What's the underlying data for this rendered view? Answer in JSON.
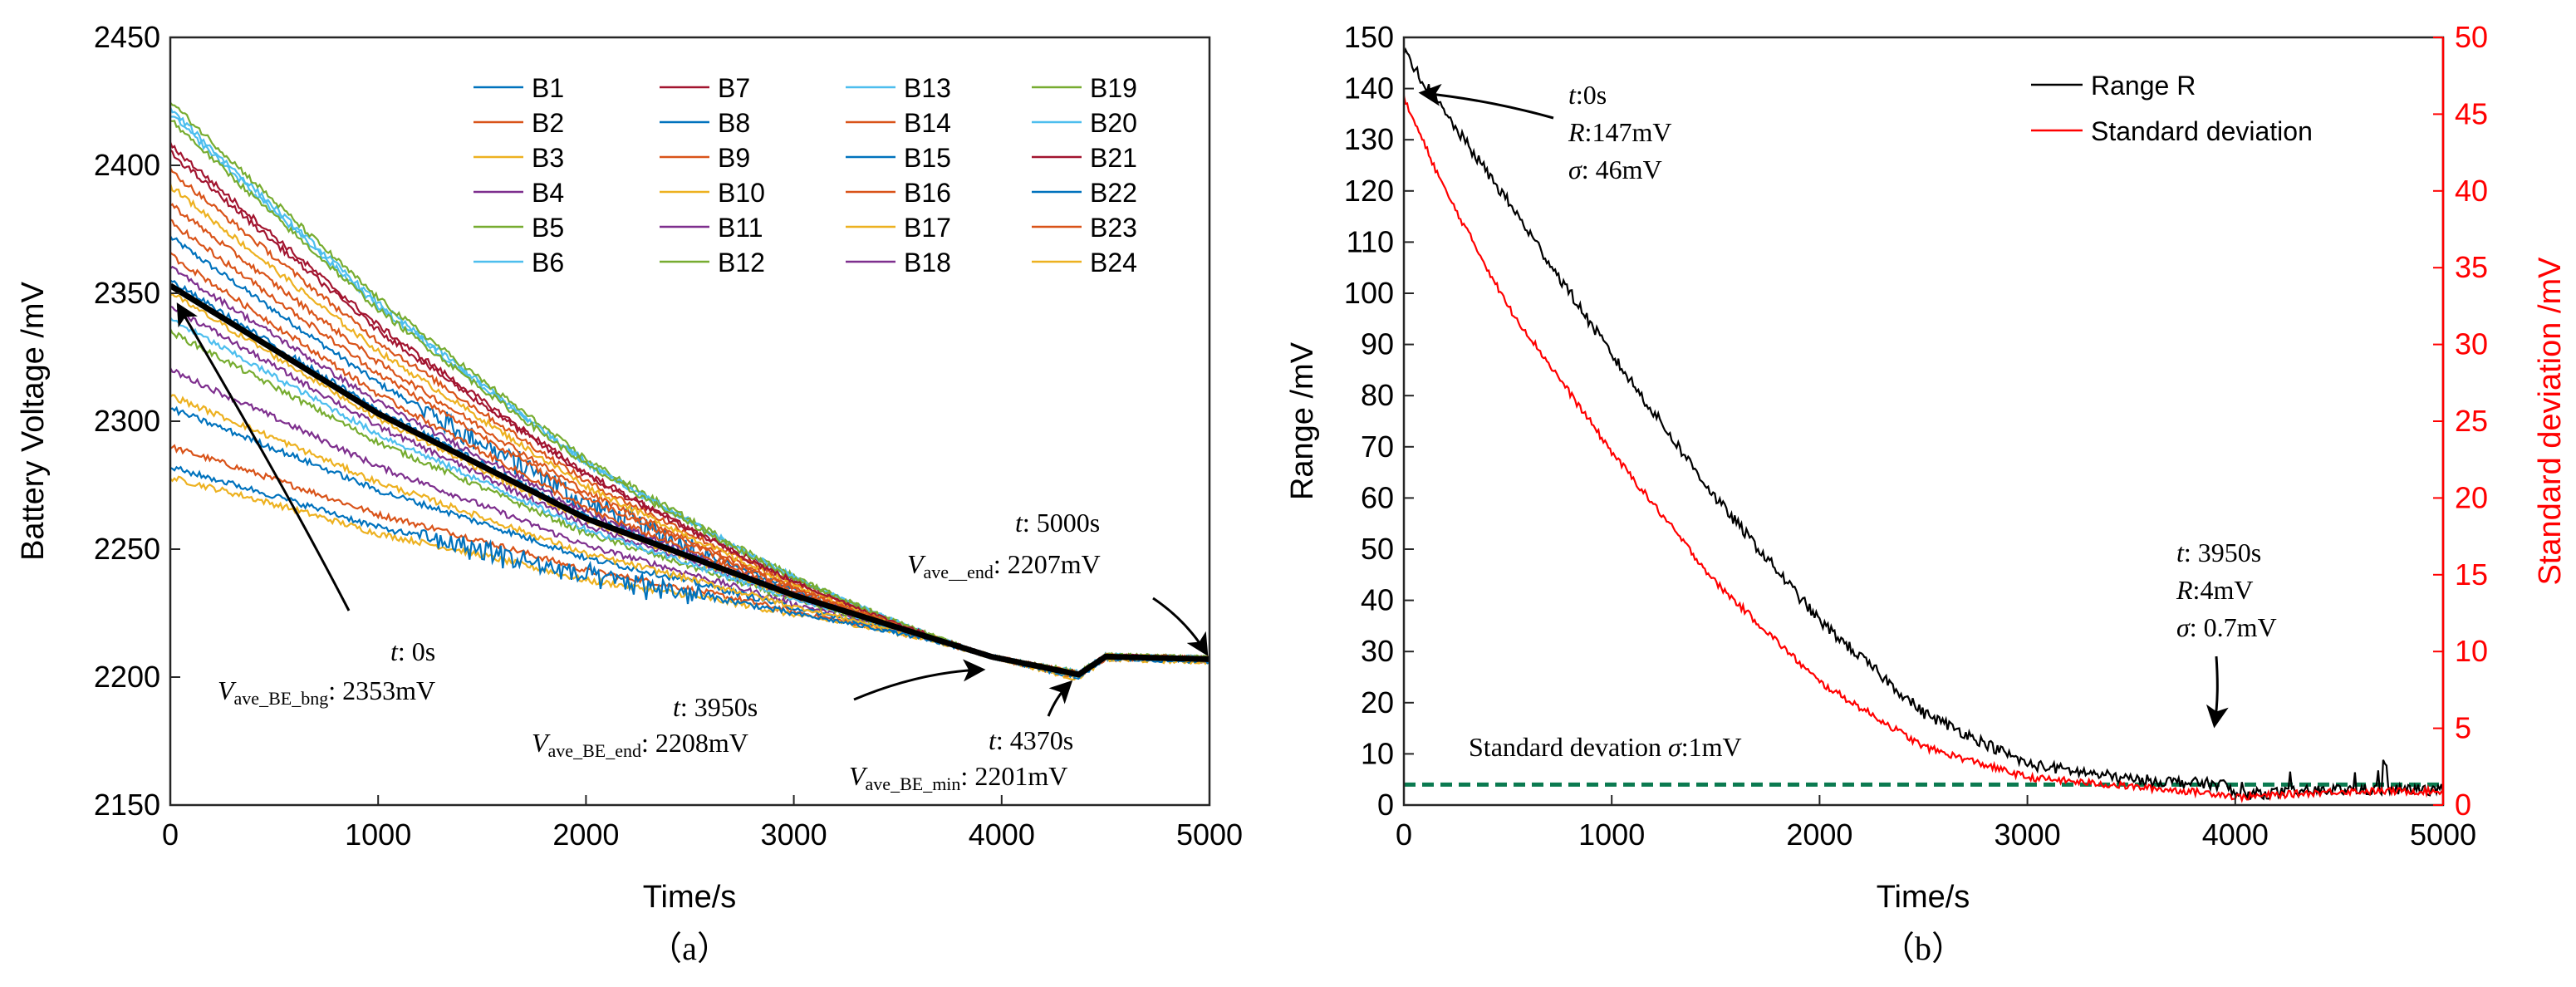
{
  "chart_data": [
    {
      "type": "line",
      "panel_label": "（a）",
      "xlabel": "Time/s",
      "ylabel": "Battery Voltage /mV",
      "xlim": [
        0,
        5000
      ],
      "ylim": [
        2150,
        2450
      ],
      "xticks": [
        0,
        1000,
        2000,
        3000,
        4000,
        5000
      ],
      "yticks": [
        2150,
        2200,
        2250,
        2300,
        2350,
        2400,
        2450
      ],
      "legend_position": "top-right",
      "series": [
        {
          "name": "B1",
          "color": "#0072BD",
          "start": 2372,
          "dip": 2201
        },
        {
          "name": "B2",
          "color": "#D95319",
          "start": 2290,
          "dip": 2198
        },
        {
          "name": "B3",
          "color": "#EDB120",
          "start": 2278,
          "dip": 2197
        },
        {
          "name": "B4",
          "color": "#7E2F8E",
          "start": 2320,
          "dip": 2200
        },
        {
          "name": "B5",
          "color": "#77AC30",
          "start": 2335,
          "dip": 2201
        },
        {
          "name": "B6",
          "color": "#4DBEEE",
          "start": 2422,
          "dip": 2203
        },
        {
          "name": "B7",
          "color": "#A2142F",
          "start": 2408,
          "dip": 2202
        },
        {
          "name": "B8",
          "color": "#0072BD",
          "start": 2305,
          "dip": 2199
        },
        {
          "name": "B9",
          "color": "#D95319",
          "start": 2385,
          "dip": 2202
        },
        {
          "name": "B10",
          "color": "#EDB120",
          "start": 2310,
          "dip": 2199
        },
        {
          "name": "B11",
          "color": "#7E2F8E",
          "start": 2360,
          "dip": 2201
        },
        {
          "name": "B12",
          "color": "#77AC30",
          "start": 2425,
          "dip": 2203
        },
        {
          "name": "B13",
          "color": "#4DBEEE",
          "start": 2420,
          "dip": 2203
        },
        {
          "name": "B14",
          "color": "#D95319",
          "start": 2398,
          "dip": 2202
        },
        {
          "name": "B15",
          "color": "#0072BD",
          "start": 2282,
          "dip": 2198
        },
        {
          "name": "B16",
          "color": "#D95319",
          "start": 2365,
          "dip": 2201
        },
        {
          "name": "B17",
          "color": "#EDB120",
          "start": 2392,
          "dip": 2202
        },
        {
          "name": "B18",
          "color": "#7E2F8E",
          "start": 2345,
          "dip": 2201
        },
        {
          "name": "B19",
          "color": "#77AC30",
          "start": 2418,
          "dip": 2203
        },
        {
          "name": "B20",
          "color": "#4DBEEE",
          "start": 2340,
          "dip": 2200
        },
        {
          "name": "B21",
          "color": "#A2142F",
          "start": 2405,
          "dip": 2202
        },
        {
          "name": "B22",
          "color": "#0072BD",
          "start": 2355,
          "dip": 2201
        },
        {
          "name": "B23",
          "color": "#D95319",
          "start": 2378,
          "dip": 2202
        },
        {
          "name": "B24",
          "color": "#EDB120",
          "start": 2350,
          "dip": 2200
        }
      ],
      "average_series": {
        "name": "Average",
        "color": "#000000",
        "points": [
          [
            0,
            2353
          ],
          [
            1000,
            2303
          ],
          [
            2000,
            2262
          ],
          [
            3000,
            2232
          ],
          [
            3950,
            2208
          ],
          [
            4370,
            2201
          ],
          [
            4500,
            2208
          ],
          [
            5000,
            2207
          ]
        ]
      },
      "annotations": [
        {
          "t_label": "t",
          "t_value": ": 0s",
          "v_label": "V",
          "v_sub": "ave_BE_bng",
          "v_value": ": 2353mV",
          "target": [
            0,
            2353
          ]
        },
        {
          "t_label": "t",
          "t_value": ": 3950s",
          "v_label": "V",
          "v_sub": "ave_BE_end",
          "v_value": ": 2208mV",
          "target": [
            3950,
            2208
          ]
        },
        {
          "t_label": "t",
          "t_value": ": 4370s",
          "v_label": "V",
          "v_sub": "ave_BE_min",
          "v_value": ": 2201mV",
          "target": [
            4370,
            2201
          ]
        },
        {
          "t_label": "t",
          "t_value": ": 5000s",
          "v_label": "V",
          "v_sub": "ave__end",
          "v_value": ": 2207mV",
          "target": [
            5000,
            2207
          ]
        }
      ]
    },
    {
      "type": "line",
      "panel_label": "（b）",
      "xlabel": "Time/s",
      "ylabel_left": "Range /mV",
      "ylabel_right": "Standard deviation /mV",
      "xlim": [
        0,
        5000
      ],
      "ylim_left": [
        0,
        150
      ],
      "ylim_right": [
        0,
        50
      ],
      "xticks": [
        0,
        1000,
        2000,
        3000,
        4000,
        5000
      ],
      "yticks_left": [
        0,
        10,
        20,
        30,
        40,
        50,
        60,
        70,
        80,
        90,
        100,
        110,
        120,
        130,
        140,
        150
      ],
      "yticks_right": [
        0,
        5,
        10,
        15,
        20,
        25,
        30,
        35,
        40,
        45,
        50
      ],
      "legend_position": "top-right",
      "series": [
        {
          "name": "Range R",
          "color": "#000000",
          "axis": "left",
          "points": [
            [
              0,
              147
            ],
            [
              200,
              135
            ],
            [
              500,
              118
            ],
            [
              1000,
              88
            ],
            [
              1500,
              60
            ],
            [
              2000,
              36
            ],
            [
              2500,
              18
            ],
            [
              3000,
              8
            ],
            [
              3500,
              5
            ],
            [
              3950,
              4
            ],
            [
              4000,
              2
            ],
            [
              4500,
              3
            ],
            [
              5000,
              3
            ]
          ]
        },
        {
          "name": "Standard deviation",
          "color": "#FF0000",
          "axis": "right",
          "points": [
            [
              0,
              46
            ],
            [
              200,
              40
            ],
            [
              500,
              32.5
            ],
            [
              1000,
              23
            ],
            [
              1500,
              14.5
            ],
            [
              2000,
              8
            ],
            [
              2500,
              3.8
            ],
            [
              3000,
              1.8
            ],
            [
              3500,
              1.2
            ],
            [
              3950,
              0.7
            ],
            [
              4000,
              0.5
            ],
            [
              4500,
              0.9
            ],
            [
              5000,
              0.9
            ]
          ]
        }
      ],
      "threshold": {
        "label_prefix": "Standard devation ",
        "sigma": "σ",
        "label_suffix": ":1mV",
        "value_right": 1.33,
        "color": "#0B7A50"
      },
      "annotations": [
        {
          "t_label": "t",
          "t_value": ":0s",
          "r_label": "R",
          "r_value": ":147mV",
          "s_label": "σ",
          "s_value": ": 46mV",
          "target": [
            0,
            140
          ]
        },
        {
          "t_label": "t",
          "t_value": ": 3950s",
          "r_label": "R",
          "r_value": ":4mV",
          "s_label": "σ",
          "s_value": ": 0.7mV",
          "target": [
            3950,
            4
          ]
        }
      ]
    }
  ]
}
